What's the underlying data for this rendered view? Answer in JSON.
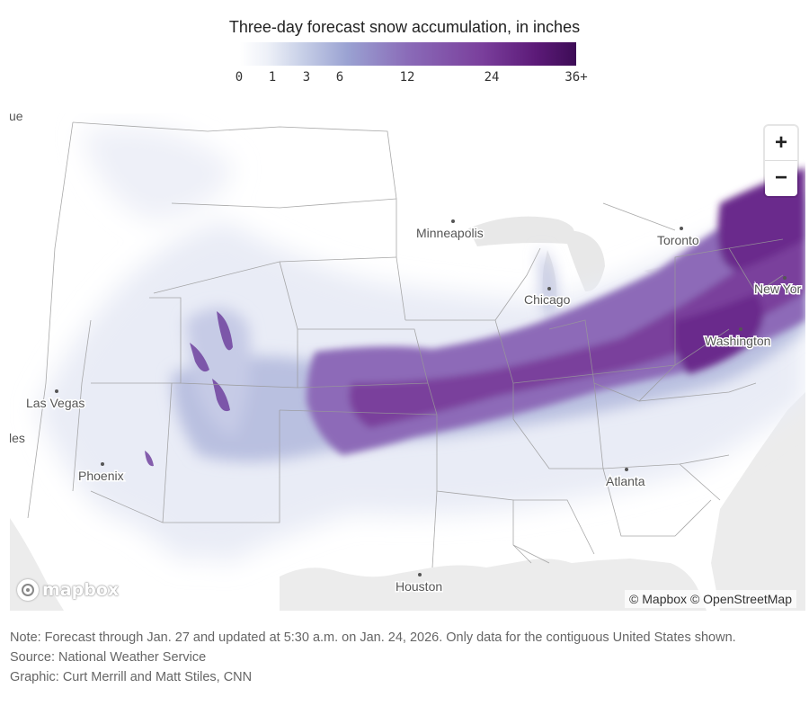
{
  "title": "Three-day forecast snow accumulation, in inches",
  "legend": {
    "ticks": [
      "0",
      "1",
      "3",
      "6",
      "12",
      "24",
      "36+"
    ],
    "colors": [
      "#ffffff",
      "#eef1f8",
      "#c9d1e8",
      "#9aa2d2",
      "#8a6bb8",
      "#7a3f9c",
      "#5c1a78",
      "#3d0c56"
    ]
  },
  "map": {
    "cities": [
      {
        "name": "Minneapolis"
      },
      {
        "name": "Toronto"
      },
      {
        "name": "Chicago"
      },
      {
        "name": "New Yor"
      },
      {
        "name": "Washington"
      },
      {
        "name": "Las Vegas"
      },
      {
        "name": "Phoenix"
      },
      {
        "name": "Atlanta"
      },
      {
        "name": "Houston"
      },
      {
        "name": "les"
      },
      {
        "name": "ue"
      }
    ],
    "zoom": {
      "in_label": "+",
      "out_label": "−"
    },
    "logo": "mapbox",
    "attribution": "© Mapbox © OpenStreetMap"
  },
  "notes": {
    "note": "Note: Forecast through Jan. 27 and updated at 5:30 a.m. on Jan. 24, 2026. Only data for the contiguous United States shown.",
    "source": "Source: National Weather Service",
    "graphic": "Graphic: Curt Merrill and Matt Stiles, CNN"
  }
}
